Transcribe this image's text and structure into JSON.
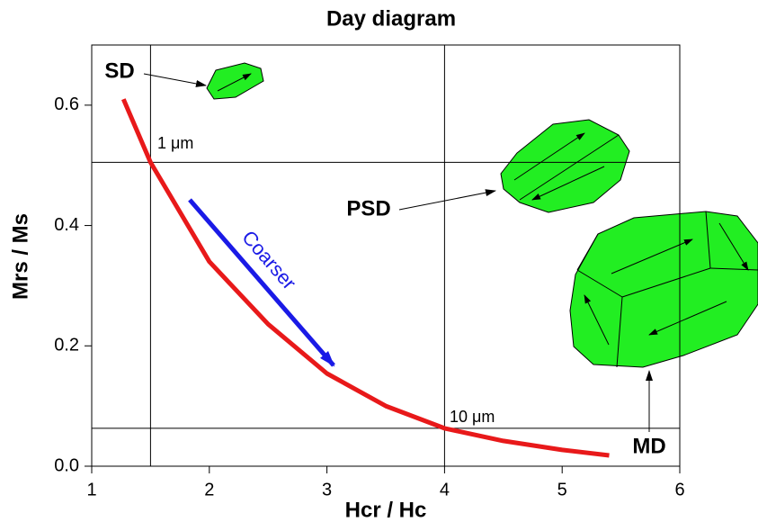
{
  "chart_data": {
    "type": "line",
    "title": "Day diagram",
    "xlabel": "Hcr / Hc",
    "ylabel": "Mrs / Ms",
    "x": [
      1.27,
      1.5,
      2,
      2.5,
      3,
      3.5,
      4,
      4.5,
      5,
      5.4
    ],
    "values": [
      0.61,
      0.505,
      0.34,
      0.236,
      0.154,
      0.1,
      0.063,
      0.042,
      0.027,
      0.018
    ],
    "color": "#e8191a",
    "xlim": [
      1,
      6
    ],
    "ylim": [
      0,
      0.7
    ],
    "xticks": [
      1,
      2,
      3,
      4,
      5,
      6
    ],
    "yticks": [
      {
        "value": 0,
        "label": "0.0"
      },
      0.2,
      0.4,
      0.6
    ],
    "vlines": [
      1.5,
      4
    ],
    "hlines": [
      {
        "value": 0.505,
        "label": "1 μm"
      },
      {
        "value": 0.063,
        "label": "10 μm"
      }
    ],
    "annotations": [
      "SD",
      "PSD",
      "MD",
      "Coarser"
    ]
  }
}
